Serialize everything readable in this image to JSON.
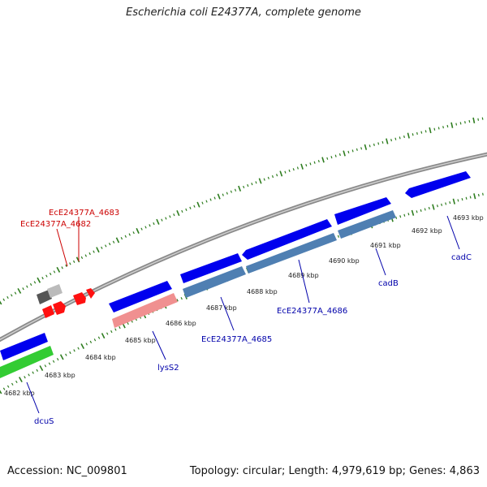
{
  "title": "Escherichia coli E24377A, complete genome",
  "footer": {
    "accession": "Accession: NC_009801",
    "topology": "Topology: circular; Length: 4,979,619 bp; Genes: 4,863"
  },
  "colors": {
    "backbone": "#8a8a8a",
    "tick": "#2e7d1f",
    "cds": "#0000ff",
    "steelblue": "#4f7fb2",
    "salmon": "#f08c8c",
    "green": "#33cc33",
    "red_feature": "#ff0000",
    "grey_feature": "#666666",
    "label_forward": "#cc0000",
    "label_reverse": "#0000aa",
    "kbp_label": "#222222"
  },
  "tick_labels": [
    {
      "text": "4682 kbp"
    },
    {
      "text": "4683 kbp"
    },
    {
      "text": "4684 kbp"
    },
    {
      "text": "4685 kbp"
    },
    {
      "text": "4686 kbp"
    },
    {
      "text": "4687 kbp"
    },
    {
      "text": "4688 kbp"
    },
    {
      "text": "4689 kbp"
    },
    {
      "text": "4690 kbp"
    },
    {
      "text": "4691 kbp"
    },
    {
      "text": "4692 kbp"
    },
    {
      "text": "4693 kbp"
    }
  ],
  "gene_labels": [
    {
      "text": "EcE24377A_4683",
      "strand": "forward"
    },
    {
      "text": "EcE24377A_4682",
      "strand": "forward"
    },
    {
      "text": "dcuS",
      "strand": "reverse"
    },
    {
      "text": "lysS2",
      "strand": "reverse"
    },
    {
      "text": "EcE24377A_4685",
      "strand": "reverse"
    },
    {
      "text": "EcE24377A_4686",
      "strand": "reverse"
    },
    {
      "text": "cadB",
      "strand": "reverse"
    },
    {
      "text": "cadC",
      "strand": "reverse"
    }
  ]
}
